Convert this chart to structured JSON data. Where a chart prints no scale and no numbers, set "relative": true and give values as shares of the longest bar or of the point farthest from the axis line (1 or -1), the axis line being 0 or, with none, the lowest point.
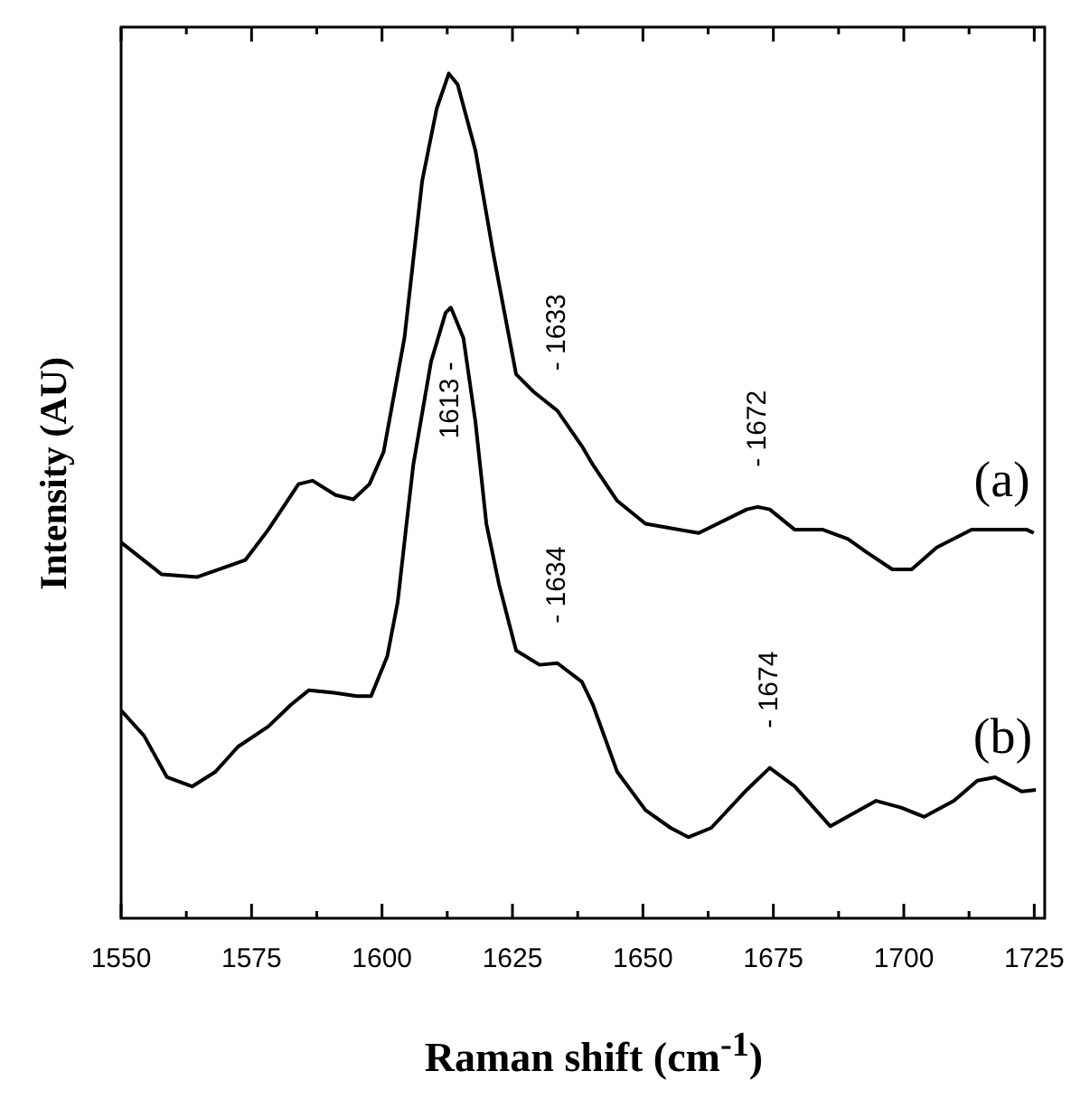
{
  "chart_data": {
    "type": "line",
    "relative": true,
    "xlabel": "Raman shift (cm$^{-1}$)",
    "ylabel": "Intensity (AU)",
    "xlim": [
      1550,
      1727
    ],
    "xticks": [
      1550,
      {
        "value": 1562.5,
        "label": null
      },
      1575,
      {
        "value": 1587.5,
        "label": null
      },
      1600,
      {
        "value": 1612.5,
        "label": null
      },
      1625,
      {
        "value": 1637.5,
        "label": null
      },
      1650,
      {
        "value": 1662.5,
        "label": null
      },
      1675,
      {
        "value": 1687.5,
        "label": null
      },
      1700,
      {
        "value": 1712.5,
        "label": null
      },
      1725
    ],
    "tick_labels": "x",
    "grid": false,
    "legend": false,
    "series": [
      {
        "name": "(a)",
        "color": "#000000",
        "x": [
          1550,
          1557.8,
          1564.6,
          1573.8,
          1578.2,
          1584,
          1586.7,
          1591.1,
          1594.5,
          1597.6,
          1600.3,
          1604.3,
          1607.7,
          1610.5,
          1612.8,
          1614.5,
          1617.9,
          1621.3,
          1625.7,
          1629.1,
          1633.6,
          1638.3,
          1640.4,
          1645.1,
          1650.5,
          1660.7,
          1669.9,
          1672,
          1674.3,
          1679.1,
          1684.5,
          1689.3,
          1692.7,
          1697.8,
          1701.5,
          1706.3,
          1713,
          1717.5,
          1723.6,
          1724.9
        ],
        "values": [
          0.445,
          0.407,
          0.404,
          0.424,
          0.46,
          0.514,
          0.518,
          0.501,
          0.496,
          0.514,
          0.552,
          0.687,
          0.873,
          0.959,
          1,
          0.987,
          0.909,
          0.788,
          0.644,
          0.623,
          0.601,
          0.559,
          0.537,
          0.494,
          0.467,
          0.456,
          0.484,
          0.487,
          0.484,
          0.46,
          0.46,
          0.449,
          0.434,
          0.413,
          0.413,
          0.439,
          0.46,
          0.46,
          0.46,
          0.456
        ]
      },
      {
        "name": "(b)",
        "color": "#000000",
        "x": [
          1550,
          1554.4,
          1558.8,
          1563.6,
          1568,
          1572.4,
          1578.2,
          1582.6,
          1586,
          1590.8,
          1595.2,
          1597.9,
          1601,
          1603,
          1604.7,
          1606,
          1609.4,
          1612.2,
          1613.2,
          1615.6,
          1617.9,
          1620,
          1622.4,
          1625.7,
          1630.2,
          1633.6,
          1638.3,
          1640.4,
          1645.1,
          1650.5,
          1655.3,
          1658.7,
          1663.1,
          1669.9,
          1674.3,
          1679.1,
          1685.9,
          1694.7,
          1699.5,
          1703.9,
          1709.6,
          1714.1,
          1717.5,
          1722.6,
          1725.3
        ],
        "values": [
          0.246,
          0.216,
          0.167,
          0.156,
          0.173,
          0.203,
          0.227,
          0.253,
          0.27,
          0.267,
          0.263,
          0.263,
          0.31,
          0.374,
          0.467,
          0.537,
          0.659,
          0.717,
          0.723,
          0.687,
          0.588,
          0.467,
          0.396,
          0.317,
          0.3,
          0.302,
          0.28,
          0.253,
          0.173,
          0.128,
          0.107,
          0.096,
          0.107,
          0.152,
          0.178,
          0.156,
          0.109,
          0.139,
          0.131,
          0.12,
          0.139,
          0.163,
          0.167,
          0.15,
          0.152
        ]
      }
    ],
    "annotations": [
      {
        "text": "- 1633",
        "x": 1633.6,
        "y": 0.601
      },
      {
        "text": "1613 -",
        "x": 1613.2,
        "y": 0.723
      },
      {
        "text": "- 1634",
        "x": 1633.6,
        "y": 0.302
      },
      {
        "text": "- 1672",
        "x": 1672,
        "y": 0.487
      },
      {
        "text": "- 1674",
        "x": 1674.3,
        "y": 0.178
      }
    ]
  }
}
